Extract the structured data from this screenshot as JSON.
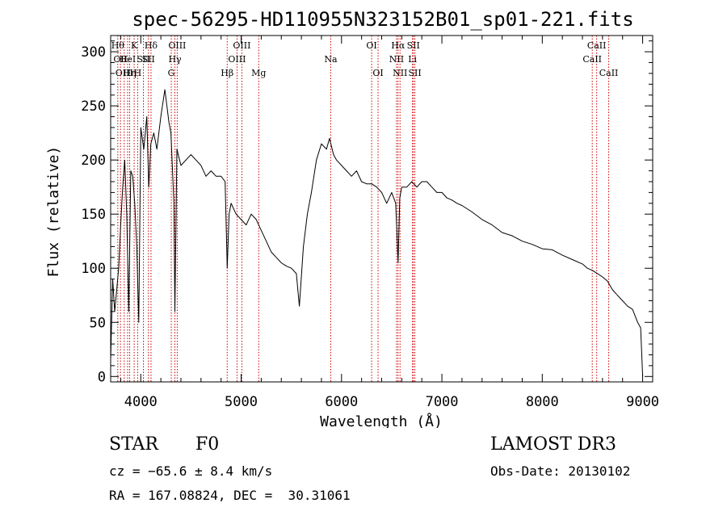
{
  "chart_data": {
    "type": "line",
    "title": "spec-56295-HD110955N323152B01_sp01-221.fits",
    "xlabel": "Wavelength (Å)",
    "ylabel": "Flux (relative)",
    "xlim": [
      3700,
      9100
    ],
    "ylim": [
      -5,
      315
    ],
    "x_ticks": [
      4000,
      5000,
      6000,
      7000,
      8000,
      9000
    ],
    "y_ticks": [
      0,
      50,
      100,
      150,
      200,
      250,
      300
    ],
    "grid": false,
    "line_color": "#000000",
    "marker_color": "#cc0000",
    "series": [
      {
        "x": [
          3700,
          3720,
          3740,
          3760,
          3780,
          3800,
          3820,
          3840,
          3860,
          3880,
          3900,
          3920,
          3940,
          3960,
          3980,
          4000,
          4030,
          4060,
          4080,
          4100,
          4130,
          4160,
          4200,
          4240,
          4280,
          4300,
          4330,
          4340,
          4360,
          4400,
          4450,
          4500,
          4550,
          4600,
          4650,
          4700,
          4750,
          4800,
          4840,
          4861,
          4880,
          4900,
          4950,
          5000,
          5050,
          5100,
          5150,
          5200,
          5250,
          5300,
          5350,
          5400,
          5450,
          5500,
          5550,
          5580,
          5620,
          5660,
          5700,
          5750,
          5800,
          5850,
          5880,
          5920,
          5950,
          6000,
          6050,
          6100,
          6150,
          6200,
          6250,
          6300,
          6350,
          6400,
          6450,
          6500,
          6540,
          6563,
          6580,
          6600,
          6650,
          6700,
          6750,
          6800,
          6850,
          6900,
          6950,
          7000,
          7050,
          7100,
          7150,
          7200,
          7300,
          7400,
          7500,
          7600,
          7700,
          7800,
          7900,
          8000,
          8100,
          8200,
          8300,
          8400,
          8450,
          8500,
          8550,
          8600,
          8650,
          8700,
          8750,
          8800,
          8850,
          8900,
          8950,
          8980,
          9000
        ],
        "y": [
          15,
          90,
          60,
          80,
          100,
          140,
          175,
          200,
          150,
          60,
          190,
          185,
          160,
          120,
          50,
          230,
          210,
          240,
          175,
          215,
          225,
          210,
          240,
          265,
          235,
          225,
          160,
          60,
          210,
          195,
          200,
          205,
          200,
          195,
          185,
          190,
          185,
          185,
          180,
          100,
          150,
          160,
          150,
          145,
          140,
          150,
          145,
          135,
          125,
          115,
          110,
          105,
          102,
          100,
          95,
          65,
          120,
          150,
          170,
          200,
          215,
          210,
          220,
          205,
          200,
          195,
          190,
          185,
          190,
          180,
          178,
          178,
          175,
          170,
          160,
          170,
          160,
          105,
          165,
          175,
          175,
          180,
          175,
          180,
          180,
          175,
          170,
          170,
          165,
          163,
          160,
          158,
          152,
          145,
          140,
          133,
          130,
          125,
          122,
          118,
          117,
          112,
          108,
          104,
          100,
          98,
          95,
          92,
          88,
          80,
          75,
          70,
          65,
          62,
          50,
          45,
          0
        ]
      }
    ],
    "lines": [
      {
        "x": 3771,
        "label": "Hθ",
        "row": 0
      },
      {
        "x": 3798,
        "label": "OII",
        "row": 1
      },
      {
        "x": 3835,
        "label": "OIII",
        "row": 2
      },
      {
        "x": 3869,
        "label": "HeI",
        "row": 1
      },
      {
        "x": 3889,
        "label": "Hη",
        "row": 2
      },
      {
        "x": 3934,
        "label": "K",
        "row": 0
      },
      {
        "x": 3969,
        "label": "H",
        "row": 2
      },
      {
        "x": 4026,
        "label": "SII",
        "row": 1
      },
      {
        "x": 4102,
        "label": "Hδ",
        "row": 0
      },
      {
        "x": 4076,
        "label": "SII",
        "row": 1
      },
      {
        "x": 4304,
        "label": "G",
        "row": 2
      },
      {
        "x": 4340,
        "label": "Hγ",
        "row": 1
      },
      {
        "x": 4363,
        "label": "OIII",
        "row": 0
      },
      {
        "x": 4861,
        "label": "Hβ",
        "row": 2
      },
      {
        "x": 4959,
        "label": "OIII",
        "row": 1
      },
      {
        "x": 5007,
        "label": "OIII",
        "row": 0
      },
      {
        "x": 5175,
        "label": "Mg",
        "row": 2
      },
      {
        "x": 5893,
        "label": "Na",
        "row": 1
      },
      {
        "x": 6300,
        "label": "OI",
        "row": 0
      },
      {
        "x": 6364,
        "label": "OI",
        "row": 2
      },
      {
        "x": 6548,
        "label": "NII",
        "row": 1
      },
      {
        "x": 6563,
        "label": "Hα",
        "row": 0
      },
      {
        "x": 6583,
        "label": "NII",
        "row": 2
      },
      {
        "x": 6707,
        "label": "Li",
        "row": 1
      },
      {
        "x": 6716,
        "label": "SII",
        "row": 0
      },
      {
        "x": 6731,
        "label": "SII",
        "row": 2
      },
      {
        "x": 8498,
        "label": "CaII",
        "row": 1
      },
      {
        "x": 8542,
        "label": "CaII",
        "row": 0
      },
      {
        "x": 8662,
        "label": "CaII",
        "row": 2
      }
    ]
  },
  "info": {
    "object_type": "STAR",
    "spectral_type": "F0",
    "survey": "LAMOST DR3",
    "velocity": "cz = −65.6 ± 8.4 km/s",
    "obs_date": "Obs-Date: 20130102",
    "coords": "RA = 167.08824, DEC =  30.31061"
  }
}
